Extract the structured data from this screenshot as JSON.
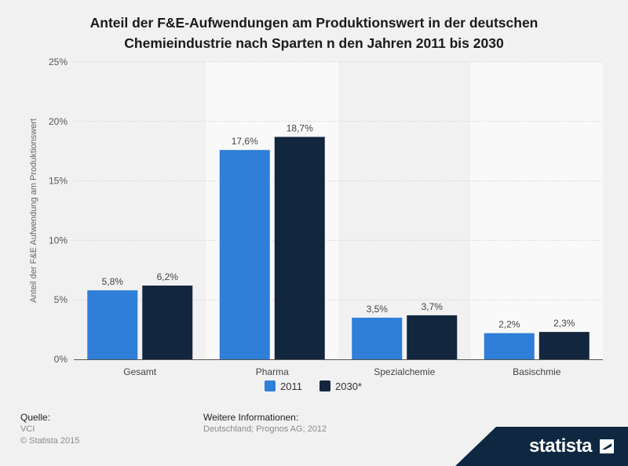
{
  "title_line1": "Anteil der F&E-Aufwendungen am Produktionswert in der deutschen",
  "title_line2": "Chemieindustrie nach Sparten n den Jahren 2011 bis 2030",
  "chart_data": {
    "type": "bar",
    "categories": [
      "Gesamt",
      "Pharma",
      "Spezialchemie",
      "Basischmie"
    ],
    "series": [
      {
        "name": "2011",
        "values": [
          5.8,
          17.6,
          3.5,
          2.2
        ],
        "labels": [
          "5,8%",
          "17,6%",
          "3,5%",
          "2,2%"
        ],
        "color": "#2f7ed8"
      },
      {
        "name": "2030*",
        "values": [
          6.2,
          18.7,
          3.7,
          2.3
        ],
        "labels": [
          "6,2%",
          "18,7%",
          "3,7%",
          "2,3%"
        ],
        "color": "#12263d"
      }
    ],
    "ylabel": "Anteil der F&E Aufwendung am Produktionswert",
    "ylim": [
      0,
      25
    ],
    "yticks": [
      0,
      5,
      10,
      15,
      20,
      25
    ],
    "ytick_labels": [
      "0%",
      "5%",
      "10%",
      "15%",
      "20%",
      "25%"
    ],
    "legend_position": "bottom-center",
    "grid": true
  },
  "footer": {
    "source_label": "Quelle:",
    "source_value": "VCI",
    "copyright": "© Statista 2015",
    "info_label": "Weitere Informationen:",
    "info_value": "Deutschland; Prognos AG; 2012"
  },
  "logo_text": "statista"
}
